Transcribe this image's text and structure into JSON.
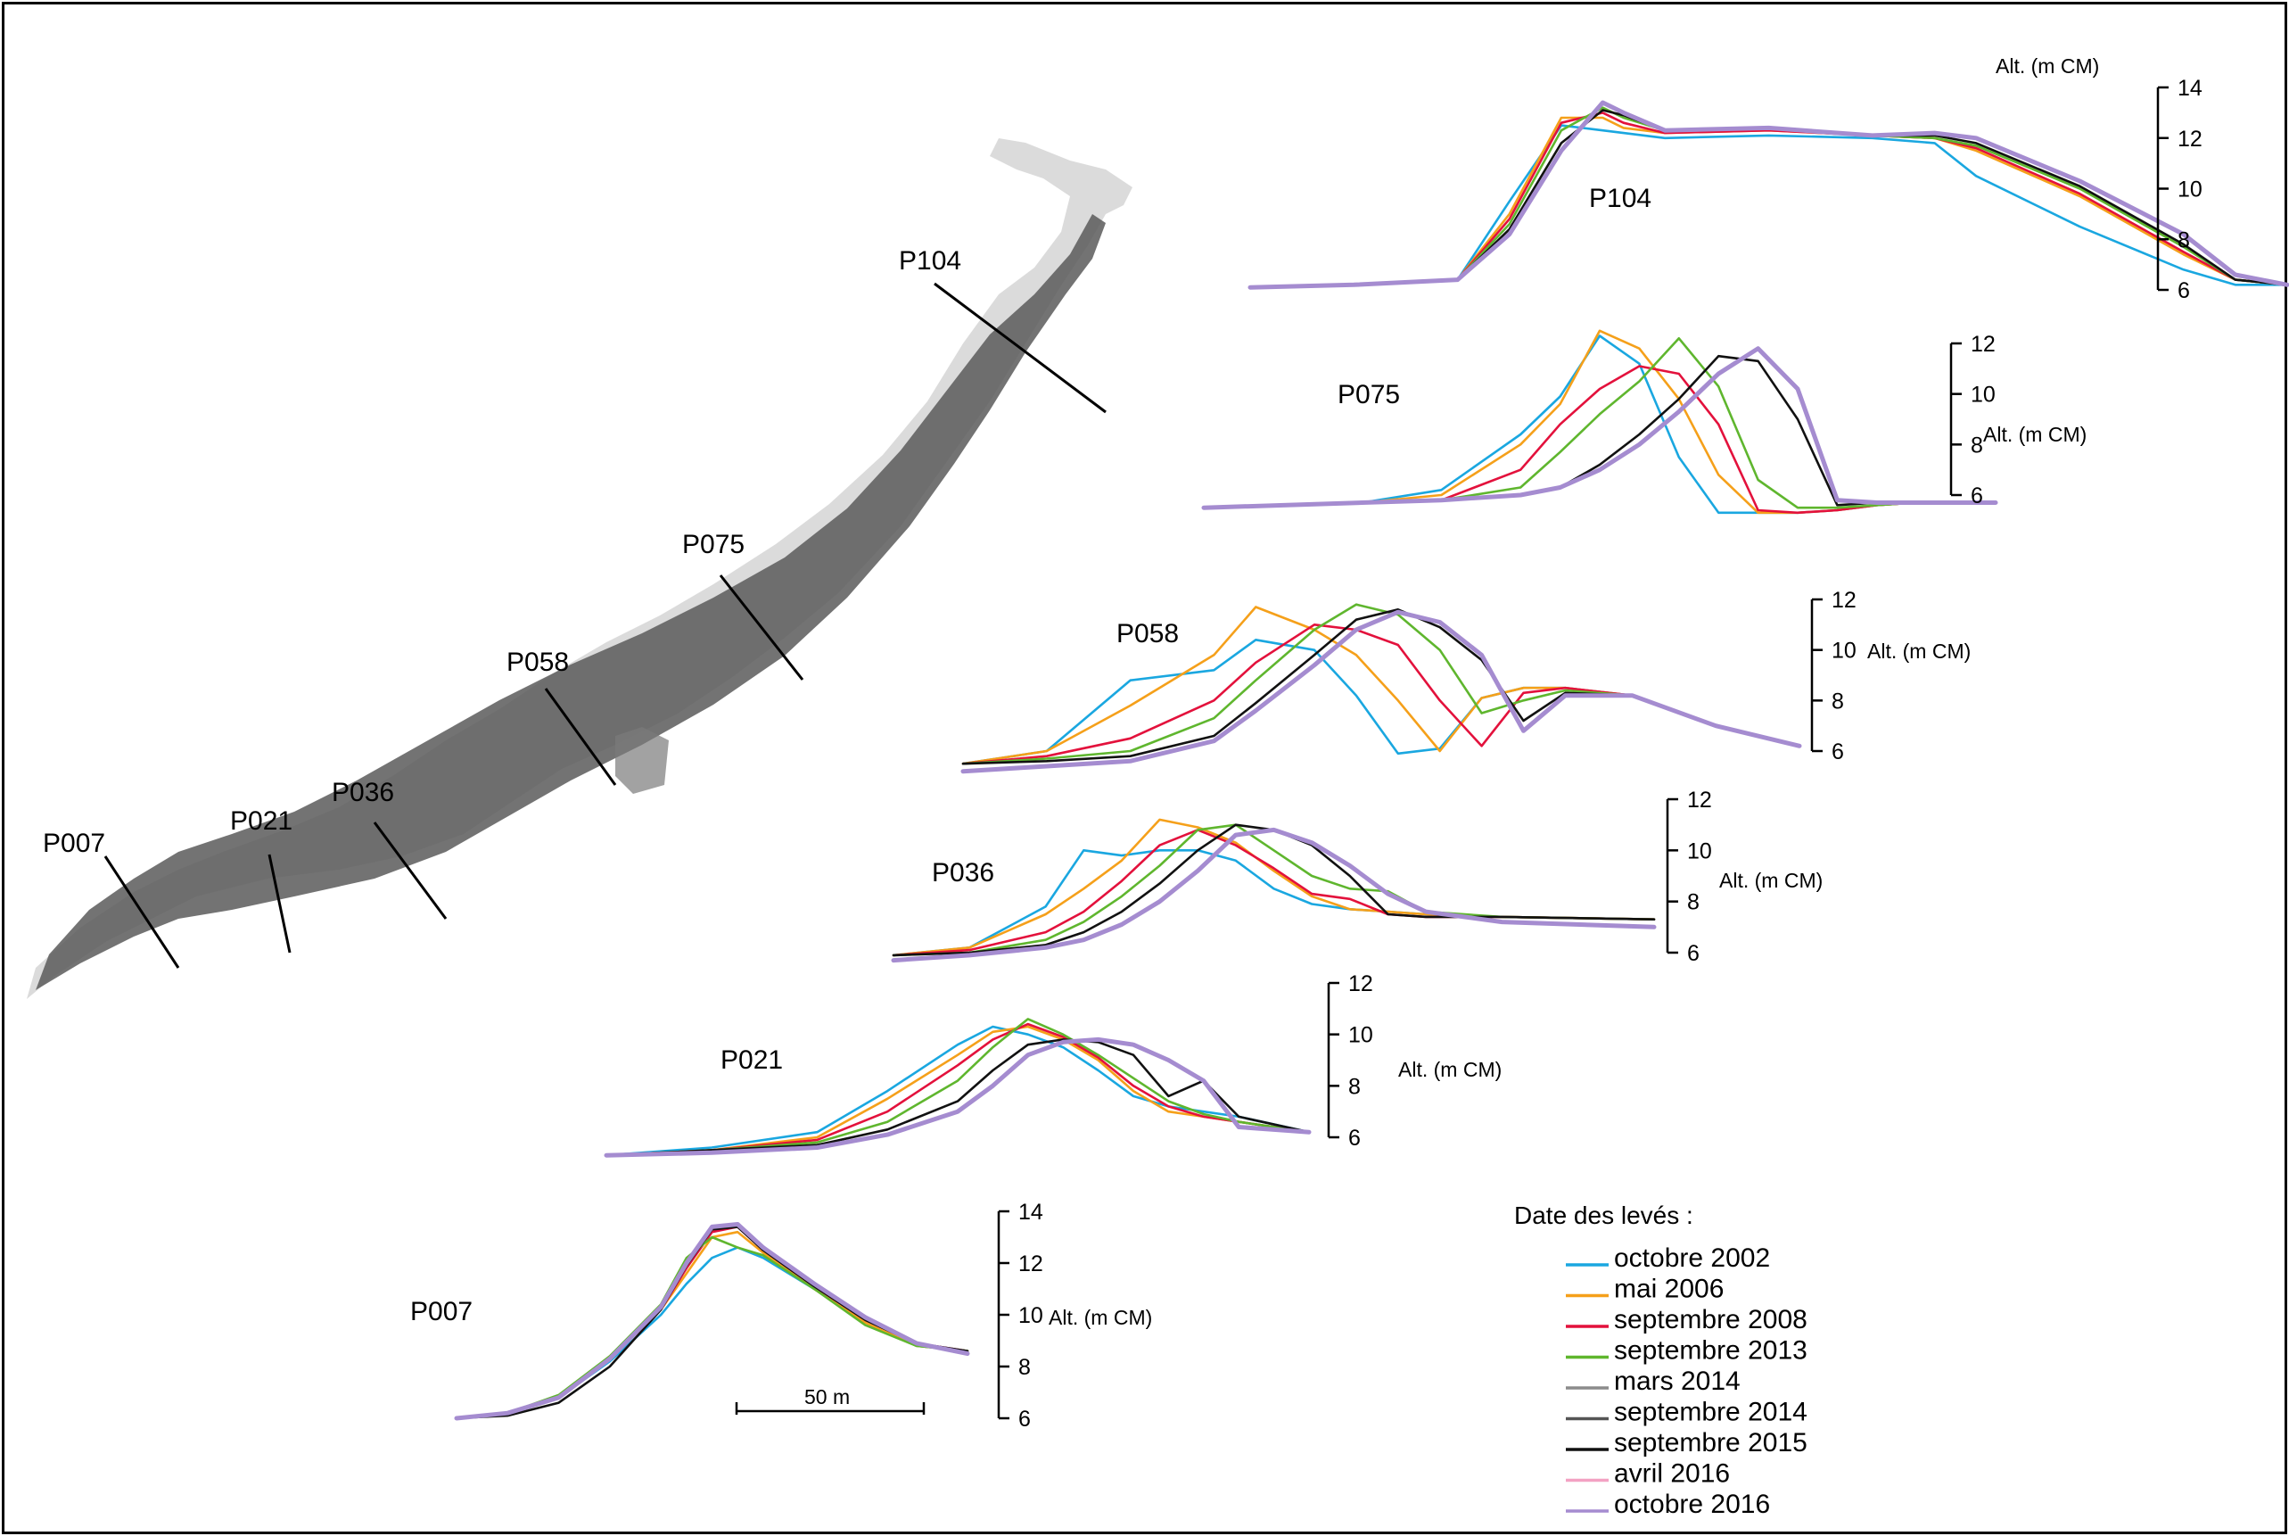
{
  "map": {
    "profiles": [
      {
        "name": "P007"
      },
      {
        "name": "P021"
      },
      {
        "name": "P036"
      },
      {
        "name": "P058"
      },
      {
        "name": "P075"
      },
      {
        "name": "P104"
      }
    ]
  },
  "axis_unit_label": "Alt. (m CM)",
  "scale_bar_label": "50 m",
  "legend": {
    "title": "Date des levés :",
    "entries": [
      {
        "label": "octobre 2002",
        "color": "#1aa7e0"
      },
      {
        "label": "mai 2006",
        "color": "#f5a01a"
      },
      {
        "label": "septembre 2008",
        "color": "#e3113c"
      },
      {
        "label": "septembre 2013",
        "color": "#5fb62e"
      },
      {
        "label": "mars 2014",
        "color": "#8c8c8c"
      },
      {
        "label": "septembre 2014",
        "color": "#555555"
      },
      {
        "label": "septembre 2015",
        "color": "#111111"
      },
      {
        "label": "avril 2016",
        "color": "#f3a2c3"
      },
      {
        "label": "octobre 2016",
        "color": "#a58cd0"
      }
    ]
  },
  "chart_data": [
    {
      "type": "line",
      "profile": "P104",
      "ylabel": "Alt. (m CM)",
      "ylim": [
        6,
        14
      ],
      "yticks": [
        "6",
        "8",
        "10",
        "12",
        "14"
      ],
      "x": [
        0,
        0.1,
        0.2,
        0.25,
        0.3,
        0.34,
        0.36,
        0.4,
        0.5,
        0.6,
        0.66,
        0.7,
        0.8,
        0.9,
        0.95,
        1
      ],
      "series": [
        {
          "name": "octobre 2002",
          "values": [
            6.1,
            6.2,
            6.4,
            9.5,
            12.5,
            12.3,
            12.2,
            12.0,
            12.1,
            12.0,
            11.8,
            10.5,
            8.5,
            6.8,
            6.2,
            6.2
          ]
        },
        {
          "name": "mai 2006",
          "values": [
            6.1,
            6.2,
            6.4,
            9.0,
            12.8,
            12.8,
            12.4,
            12.2,
            12.3,
            12.1,
            12.0,
            11.5,
            9.7,
            7.4,
            6.4,
            6.2
          ]
        },
        {
          "name": "septembre 2008",
          "values": [
            6.1,
            6.2,
            6.4,
            8.8,
            12.6,
            13.0,
            12.6,
            12.2,
            12.3,
            12.1,
            12.0,
            11.6,
            9.8,
            7.5,
            6.4,
            6.2
          ]
        },
        {
          "name": "septembre 2013",
          "values": [
            6.1,
            6.2,
            6.4,
            8.6,
            12.3,
            13.2,
            12.8,
            12.3,
            12.4,
            12.1,
            12.0,
            11.7,
            10.0,
            7.7,
            6.4,
            6.2
          ]
        },
        {
          "name": "septembre 2015",
          "values": [
            6.1,
            6.2,
            6.4,
            8.4,
            11.8,
            13.1,
            12.9,
            12.3,
            12.4,
            12.1,
            12.1,
            11.8,
            10.1,
            7.8,
            6.4,
            6.2
          ]
        },
        {
          "name": "octobre 2016",
          "values": [
            6.1,
            6.2,
            6.4,
            8.2,
            11.5,
            13.4,
            13.0,
            12.3,
            12.4,
            12.1,
            12.2,
            12.0,
            10.3,
            8.2,
            6.6,
            6.2
          ]
        }
      ]
    },
    {
      "type": "line",
      "profile": "P075",
      "ylabel": "Alt. (m CM)",
      "ylim": [
        6,
        12
      ],
      "yticks": [
        "6",
        "8",
        "10",
        "12"
      ],
      "x": [
        0,
        0.2,
        0.3,
        0.4,
        0.45,
        0.5,
        0.55,
        0.6,
        0.65,
        0.7,
        0.75,
        0.8,
        0.85,
        0.9,
        1
      ],
      "series": [
        {
          "name": "octobre 2002",
          "values": [
            5.5,
            5.7,
            6.2,
            8.4,
            9.9,
            12.3,
            11.2,
            7.5,
            5.3,
            5.3,
            5.3,
            5.4,
            5.6,
            5.7,
            5.7
          ]
        },
        {
          "name": "mai 2006",
          "values": [
            5.5,
            5.7,
            6.0,
            8.0,
            9.6,
            12.5,
            11.8,
            9.8,
            6.8,
            5.3,
            5.3,
            5.4,
            5.6,
            5.7,
            5.7
          ]
        },
        {
          "name": "septembre 2008",
          "values": [
            5.5,
            5.7,
            5.8,
            7.0,
            8.8,
            10.2,
            11.1,
            10.8,
            8.8,
            5.4,
            5.3,
            5.4,
            5.6,
            5.7,
            5.7
          ]
        },
        {
          "name": "septembre 2013",
          "values": [
            5.5,
            5.7,
            5.8,
            6.3,
            7.7,
            9.2,
            10.5,
            12.2,
            10.3,
            6.6,
            5.5,
            5.5,
            5.6,
            5.7,
            5.7
          ]
        },
        {
          "name": "septembre 2015",
          "values": [
            5.5,
            5.7,
            5.8,
            6.0,
            6.3,
            7.2,
            8.4,
            9.8,
            11.5,
            11.3,
            9.0,
            5.6,
            5.7,
            5.7,
            5.7
          ]
        },
        {
          "name": "octobre 2016",
          "values": [
            5.5,
            5.7,
            5.8,
            6.0,
            6.3,
            7.0,
            8.0,
            9.3,
            10.8,
            11.8,
            10.2,
            5.8,
            5.7,
            5.7,
            5.7
          ]
        }
      ]
    },
    {
      "type": "line",
      "profile": "P058",
      "ylabel": "Alt. (m CM)",
      "ylim": [
        6,
        12
      ],
      "yticks": [
        "6",
        "8",
        "10",
        "12"
      ],
      "x": [
        0,
        0.1,
        0.2,
        0.3,
        0.35,
        0.42,
        0.47,
        0.52,
        0.57,
        0.62,
        0.67,
        0.72,
        0.8,
        0.9,
        1
      ],
      "series": [
        {
          "name": "octobre 2002",
          "values": [
            5.5,
            6.0,
            8.8,
            9.2,
            10.4,
            10.0,
            8.2,
            5.9,
            6.1,
            8.1,
            8.5,
            8.5,
            8.2,
            7.0,
            6.2
          ]
        },
        {
          "name": "mai 2006",
          "values": [
            5.5,
            6.0,
            7.8,
            9.8,
            11.7,
            10.8,
            9.8,
            8.0,
            6.0,
            8.1,
            8.5,
            8.5,
            8.2,
            7.0,
            6.2
          ]
        },
        {
          "name": "septembre 2008",
          "values": [
            5.5,
            5.8,
            6.5,
            8.0,
            9.5,
            11.0,
            10.8,
            10.2,
            8.0,
            6.2,
            8.3,
            8.5,
            8.2,
            7.0,
            6.2
          ]
        },
        {
          "name": "septembre 2013",
          "values": [
            5.5,
            5.7,
            6.0,
            7.3,
            8.8,
            10.8,
            11.8,
            11.4,
            10.0,
            7.5,
            8.0,
            8.4,
            8.2,
            7.0,
            6.2
          ]
        },
        {
          "name": "septembre 2015",
          "values": [
            5.5,
            5.6,
            5.8,
            6.6,
            7.9,
            9.8,
            11.2,
            11.6,
            10.9,
            9.6,
            7.2,
            8.3,
            8.2,
            7.0,
            6.2
          ]
        },
        {
          "name": "octobre 2016",
          "values": [
            5.2,
            5.4,
            5.6,
            6.4,
            7.6,
            9.4,
            10.8,
            11.5,
            11.1,
            9.8,
            6.8,
            8.2,
            8.2,
            7.0,
            6.2
          ]
        }
      ]
    },
    {
      "type": "line",
      "profile": "P036",
      "ylabel": "Alt. (m CM)",
      "ylim": [
        6,
        12
      ],
      "yticks": [
        "6",
        "8",
        "10",
        "12"
      ],
      "x": [
        0,
        0.1,
        0.2,
        0.25,
        0.3,
        0.35,
        0.4,
        0.45,
        0.5,
        0.55,
        0.6,
        0.65,
        0.7,
        0.8,
        1
      ],
      "series": [
        {
          "name": "octobre 2002",
          "values": [
            5.9,
            6.2,
            7.8,
            10.0,
            9.8,
            10.0,
            10.0,
            9.6,
            8.5,
            7.9,
            7.7,
            7.6,
            7.5,
            7.4,
            7.3
          ]
        },
        {
          "name": "mai 2006",
          "values": [
            5.9,
            6.2,
            7.5,
            8.5,
            9.6,
            11.2,
            10.9,
            10.3,
            9.2,
            8.2,
            7.7,
            7.6,
            7.5,
            7.4,
            7.3
          ]
        },
        {
          "name": "septembre 2008",
          "values": [
            5.9,
            6.1,
            6.8,
            7.6,
            8.8,
            10.2,
            10.8,
            10.2,
            9.3,
            8.3,
            8.1,
            7.5,
            7.4,
            7.4,
            7.3
          ]
        },
        {
          "name": "septembre 2013",
          "values": [
            5.9,
            6.0,
            6.5,
            7.2,
            8.2,
            9.4,
            10.8,
            11.0,
            10.0,
            9.0,
            8.5,
            8.4,
            7.6,
            7.4,
            7.3
          ]
        },
        {
          "name": "septembre 2015",
          "values": [
            5.9,
            6.0,
            6.3,
            6.8,
            7.6,
            8.7,
            10.0,
            11.0,
            10.8,
            10.2,
            9.0,
            7.5,
            7.4,
            7.4,
            7.3
          ]
        },
        {
          "name": "octobre 2016",
          "values": [
            5.7,
            5.9,
            6.2,
            6.5,
            7.1,
            8.0,
            9.2,
            10.6,
            10.8,
            10.3,
            9.4,
            8.3,
            7.6,
            7.2,
            7.0
          ]
        }
      ]
    },
    {
      "type": "line",
      "profile": "P021",
      "ylabel": "Alt. (m CM)",
      "ylim": [
        6,
        12
      ],
      "yticks": [
        "6",
        "8",
        "10",
        "12"
      ],
      "x": [
        0,
        0.15,
        0.3,
        0.4,
        0.5,
        0.55,
        0.6,
        0.65,
        0.7,
        0.75,
        0.8,
        0.85,
        0.9,
        1
      ],
      "series": [
        {
          "name": "octobre 2002",
          "values": [
            5.3,
            5.6,
            6.2,
            7.8,
            9.6,
            10.3,
            10.0,
            9.5,
            8.6,
            7.6,
            7.2,
            7.0,
            6.8,
            6.2
          ]
        },
        {
          "name": "mai 2006",
          "values": [
            5.3,
            5.5,
            6.0,
            7.5,
            9.2,
            10.1,
            10.3,
            9.8,
            9.0,
            7.8,
            7.0,
            6.8,
            6.6,
            6.2
          ]
        },
        {
          "name": "septembre 2008",
          "values": [
            5.3,
            5.5,
            5.9,
            7.0,
            8.8,
            9.8,
            10.4,
            9.9,
            9.1,
            8.0,
            7.2,
            6.8,
            6.6,
            6.2
          ]
        },
        {
          "name": "septembre 2013",
          "values": [
            5.3,
            5.5,
            5.8,
            6.6,
            8.2,
            9.5,
            10.6,
            10.0,
            9.2,
            8.3,
            7.4,
            6.9,
            6.6,
            6.2
          ]
        },
        {
          "name": "septembre 2015",
          "values": [
            5.3,
            5.5,
            5.7,
            6.3,
            7.4,
            8.6,
            9.6,
            9.8,
            9.7,
            9.2,
            7.6,
            8.2,
            6.8,
            6.2
          ]
        },
        {
          "name": "octobre 2016",
          "values": [
            5.3,
            5.4,
            5.6,
            6.1,
            7.0,
            8.0,
            9.2,
            9.7,
            9.8,
            9.6,
            9.0,
            8.2,
            6.4,
            6.2
          ]
        }
      ]
    },
    {
      "type": "line",
      "profile": "P007",
      "ylabel": "Alt. (m CM)",
      "ylim": [
        6,
        14
      ],
      "yticks": [
        "6",
        "8",
        "10",
        "12",
        "14"
      ],
      "x": [
        0,
        0.1,
        0.2,
        0.3,
        0.4,
        0.45,
        0.5,
        0.55,
        0.6,
        0.7,
        0.8,
        0.9,
        1
      ],
      "series": [
        {
          "name": "octobre 2002",
          "values": [
            6.0,
            6.2,
            6.8,
            8.2,
            10.0,
            11.2,
            12.2,
            12.6,
            12.2,
            11.0,
            9.8,
            8.8,
            8.6
          ]
        },
        {
          "name": "mai 2006",
          "values": [
            6.0,
            6.2,
            6.8,
            8.4,
            10.2,
            11.6,
            13.0,
            13.2,
            12.4,
            11.0,
            9.7,
            8.8,
            8.6
          ]
        },
        {
          "name": "septembre 2008",
          "values": [
            6.0,
            6.2,
            6.8,
            8.3,
            10.2,
            11.8,
            13.2,
            13.4,
            12.5,
            11.1,
            9.8,
            8.9,
            8.6
          ]
        },
        {
          "name": "septembre 2013",
          "values": [
            6.0,
            6.2,
            6.9,
            8.4,
            10.4,
            12.2,
            13.0,
            12.6,
            12.3,
            11.0,
            9.6,
            8.8,
            8.6
          ]
        },
        {
          "name": "septembre 2015",
          "values": [
            6.0,
            6.1,
            6.6,
            8.0,
            10.2,
            11.9,
            13.3,
            13.4,
            12.5,
            11.1,
            9.8,
            8.9,
            8.6
          ]
        },
        {
          "name": "octobre 2016",
          "values": [
            6.0,
            6.2,
            6.8,
            8.3,
            10.3,
            12.0,
            13.4,
            13.5,
            12.6,
            11.2,
            9.9,
            8.9,
            8.5
          ]
        }
      ]
    }
  ]
}
